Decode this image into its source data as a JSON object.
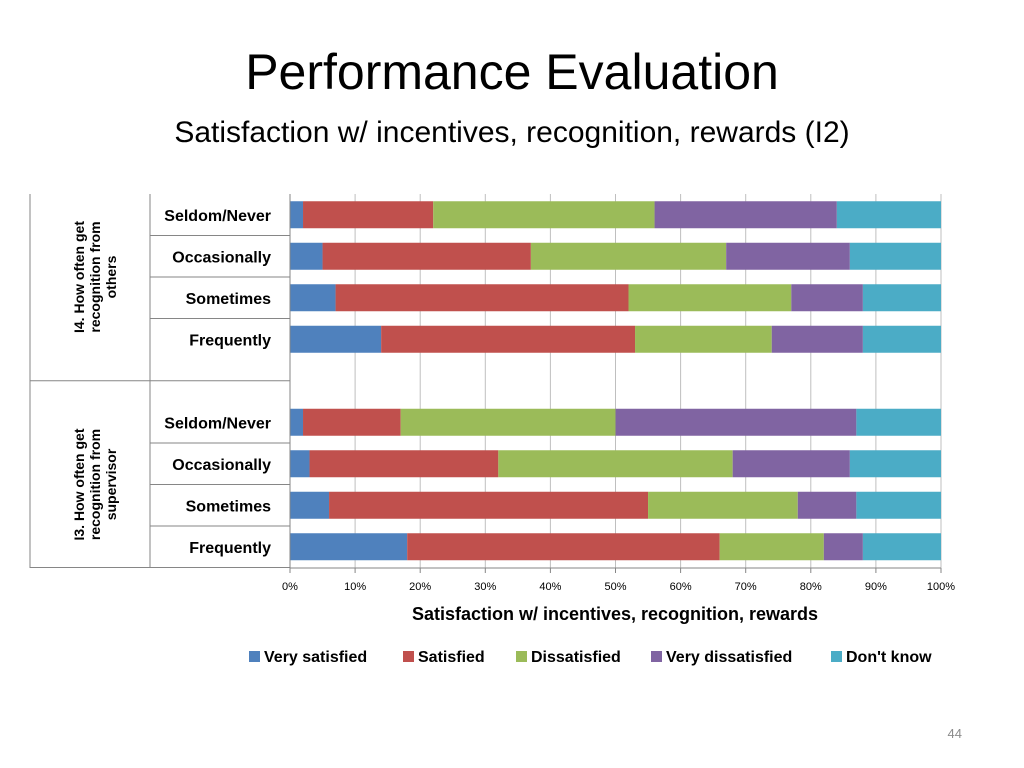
{
  "slide": {
    "title": "Performance Evaluation",
    "subtitle": "Satisfaction w/ incentives, recognition, rewards (I2)",
    "page_number": "44"
  },
  "chart_data": {
    "type": "bar",
    "orientation": "horizontal",
    "stacked": "100%",
    "xlabel": "Satisfaction w/ incentives, recognition, rewards",
    "xlim": [
      0,
      100
    ],
    "x_ticks": [
      "0%",
      "10%",
      "20%",
      "30%",
      "40%",
      "50%",
      "60%",
      "70%",
      "80%",
      "90%",
      "100%"
    ],
    "grid": "vertical gridlines",
    "legend_position": "bottom",
    "groups": [
      {
        "label": "I4. How often get recognition from others",
        "label_lines": [
          "I4. How often get",
          "recognition from",
          "others"
        ],
        "categories": [
          "Seldom/Never",
          "Occasionally",
          "Sometimes",
          "Frequently"
        ]
      },
      {
        "label": "I3. How often get recognition from supervisor",
        "label_lines": [
          "I3. How often get",
          "recognition from",
          "supervisor"
        ],
        "categories": [
          "Seldom/Never",
          "Occasionally",
          "Sometimes",
          "Frequently"
        ]
      }
    ],
    "series": [
      {
        "name": "Very satisfied",
        "color": "#4F81BD",
        "values": [
          2,
          5,
          7,
          14,
          2,
          3,
          6,
          18
        ]
      },
      {
        "name": "Satisfied",
        "color": "#C0504D",
        "values": [
          20,
          32,
          45,
          39,
          15,
          29,
          49,
          48
        ]
      },
      {
        "name": "Dissatisfied",
        "color": "#9BBB59",
        "values": [
          34,
          30,
          25,
          21,
          33,
          36,
          23,
          16
        ]
      },
      {
        "name": "Very dissatisfied",
        "color": "#8064A2",
        "values": [
          28,
          19,
          11,
          14,
          37,
          18,
          9,
          6
        ]
      },
      {
        "name": "Don't know",
        "color": "#4BACC6",
        "values": [
          16,
          14,
          12,
          12,
          13,
          14,
          13,
          12
        ]
      }
    ]
  }
}
